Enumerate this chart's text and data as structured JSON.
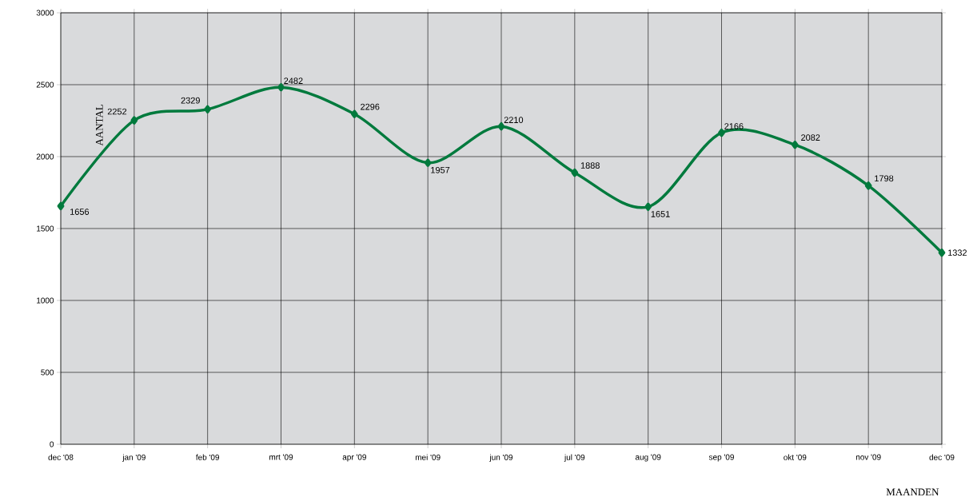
{
  "chart_data": {
    "type": "line",
    "xlabel": "MAANDEN",
    "ylabel": "AANTAL",
    "categories": [
      "dec '08",
      "jan '09",
      "feb '09",
      "mrt '09",
      "apr '09",
      "mei '09",
      "jun '09",
      "jul '09",
      "aug '09",
      "sep '09",
      "okt '09",
      "nov '09",
      "dec '09"
    ],
    "series": [
      {
        "color": "#007a3d",
        "values": [
          1656,
          2252,
          2329,
          2482,
          2296,
          1957,
          2210,
          1888,
          1651,
          2166,
          2082,
          1798,
          1332
        ]
      }
    ],
    "ylim": [
      0,
      3000
    ],
    "yticks": [
      0,
      500,
      1000,
      1500,
      2000,
      2500,
      3000
    ],
    "grid": true,
    "marker": "diamond",
    "line_style": "solid",
    "data_labels": true
  }
}
